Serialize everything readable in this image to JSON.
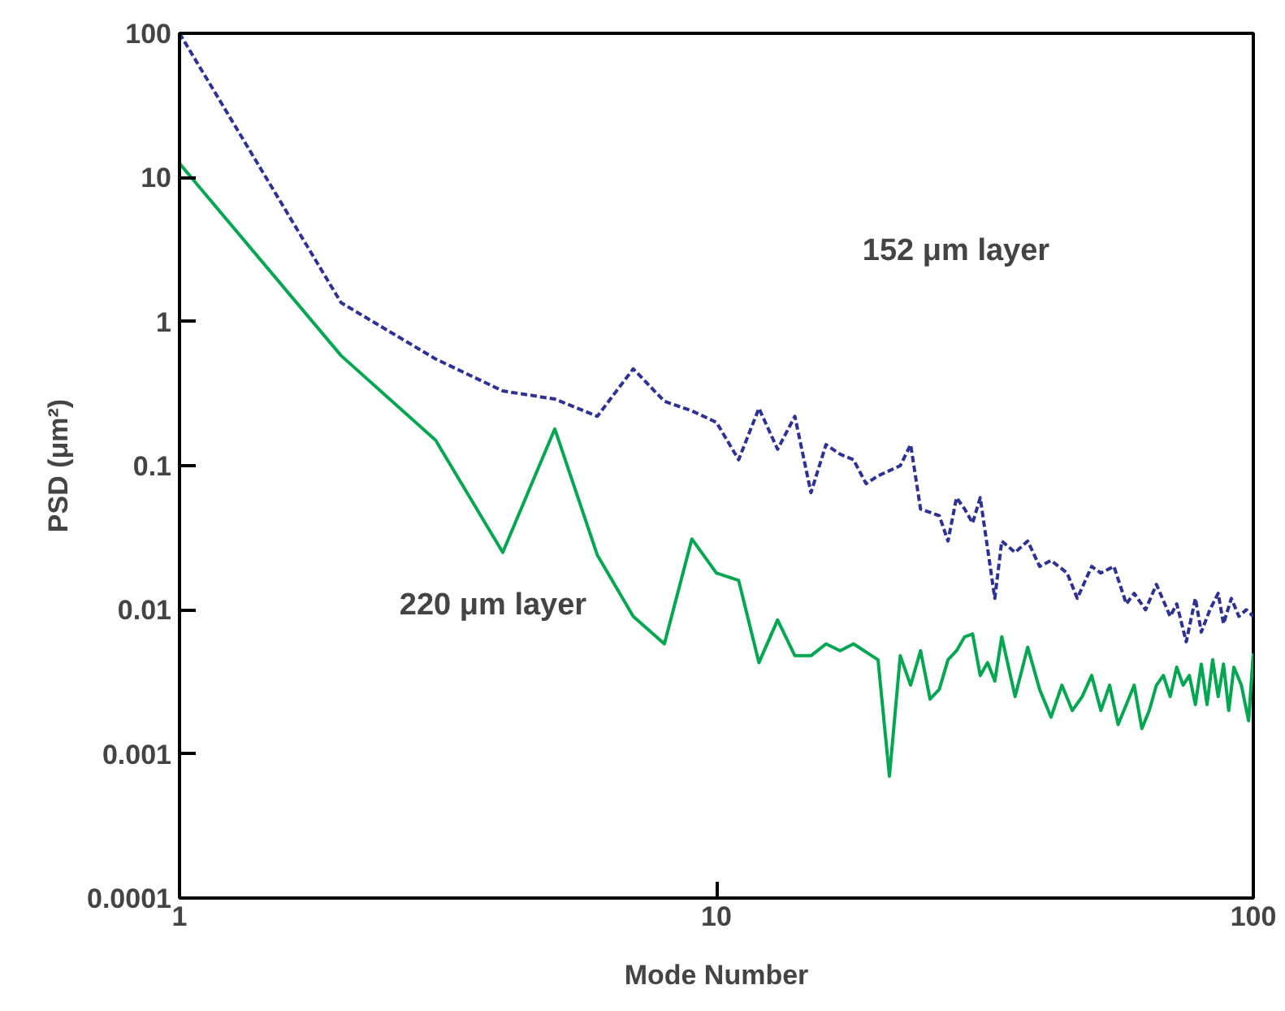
{
  "chart_data": {
    "type": "line",
    "xlabel": "Mode Number",
    "ylabel": "PSD (μm²)",
    "log": "xy",
    "grid": false,
    "xlim": [
      1,
      100
    ],
    "xticks": [
      1,
      10,
      100
    ],
    "ylim": [
      0.0001,
      100
    ],
    "yticks": [
      {
        "value": 0.0001,
        "label": "0.0001"
      },
      {
        "value": 0.001,
        "label": "0.001"
      },
      {
        "value": 0.01,
        "label": "0.01"
      },
      {
        "value": 0.1,
        "label": "0.1"
      },
      {
        "value": 1,
        "label": "1"
      },
      {
        "value": 10,
        "label": "10"
      },
      {
        "value": 100,
        "label": "100"
      }
    ],
    "series": [
      {
        "color": "#2e3192",
        "line_style": "dashed",
        "x": [
          1,
          2,
          3,
          4,
          5,
          6,
          7,
          8,
          9,
          10,
          11,
          12,
          13,
          14,
          15,
          16,
          17,
          18,
          19,
          20,
          22,
          23,
          24,
          26,
          27,
          28,
          29,
          30,
          31,
          33,
          34,
          36,
          38,
          40,
          42,
          45,
          47,
          50,
          52,
          55,
          58,
          60,
          63,
          66,
          70,
          72,
          75,
          78,
          80,
          83,
          86,
          88,
          91,
          94,
          97,
          100
        ],
        "values": [
          100,
          1.35,
          0.55,
          0.33,
          0.29,
          0.22,
          0.47,
          0.28,
          0.24,
          0.2,
          0.11,
          0.25,
          0.13,
          0.22,
          0.065,
          0.14,
          0.12,
          0.11,
          0.075,
          0.085,
          0.1,
          0.14,
          0.05,
          0.045,
          0.03,
          0.06,
          0.05,
          0.04,
          0.06,
          0.012,
          0.03,
          0.025,
          0.03,
          0.02,
          0.022,
          0.018,
          0.012,
          0.02,
          0.018,
          0.02,
          0.011,
          0.013,
          0.01,
          0.015,
          0.009,
          0.011,
          0.006,
          0.012,
          0.007,
          0.01,
          0.013,
          0.008,
          0.012,
          0.009,
          0.01,
          0.009
        ]
      },
      {
        "color": "#00a651",
        "line_style": "solid",
        "x": [
          1,
          2,
          3,
          4,
          5,
          6,
          7,
          8,
          9,
          10,
          11,
          12,
          13,
          14,
          15,
          16,
          17,
          18,
          20,
          21,
          22,
          23,
          24,
          25,
          26,
          27,
          28,
          29,
          30,
          31,
          32,
          33,
          34,
          36,
          38,
          40,
          42,
          44,
          46,
          48,
          50,
          52,
          54,
          56,
          58,
          60,
          62,
          64,
          66,
          68,
          70,
          72,
          74,
          76,
          78,
          80,
          82,
          84,
          86,
          88,
          90,
          92,
          95,
          98,
          100
        ],
        "values": [
          12.5,
          0.58,
          0.15,
          0.025,
          0.18,
          0.024,
          0.009,
          0.0058,
          0.031,
          0.018,
          0.016,
          0.0043,
          0.0085,
          0.0048,
          0.0048,
          0.0058,
          0.0052,
          0.0058,
          0.0045,
          0.0007,
          0.0048,
          0.003,
          0.0052,
          0.0024,
          0.0028,
          0.0045,
          0.0052,
          0.0065,
          0.0068,
          0.0035,
          0.0043,
          0.0032,
          0.0065,
          0.0025,
          0.0055,
          0.0028,
          0.0018,
          0.003,
          0.002,
          0.0025,
          0.0035,
          0.002,
          0.003,
          0.0016,
          0.0022,
          0.003,
          0.0015,
          0.002,
          0.003,
          0.0035,
          0.0025,
          0.004,
          0.003,
          0.0035,
          0.0022,
          0.0042,
          0.0022,
          0.0045,
          0.0025,
          0.0042,
          0.002,
          0.004,
          0.003,
          0.0017,
          0.005
        ]
      }
    ],
    "annotations": [
      "152 μm layer",
      "220 μm layer"
    ]
  }
}
